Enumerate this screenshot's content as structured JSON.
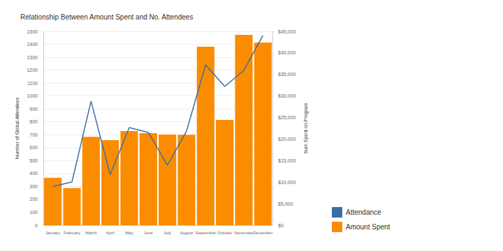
{
  "chart_data": {
    "type": "bar",
    "title": "Relationship Between Amount Spent and No. Attendees",
    "y_label": "Number of Global Attendees",
    "y2_label": "Sum Spent on Program",
    "categories": [
      "January",
      "February",
      "March",
      "April",
      "May",
      "June",
      "July",
      "August",
      "September",
      "October",
      "November",
      "December"
    ],
    "series": [
      {
        "name": "Attendance",
        "type": "line",
        "color": "#3d6fa3",
        "values": [
          300,
          335,
          960,
          390,
          755,
          718,
          464,
          728,
          1241,
          1074,
          1198,
          1468
        ]
      },
      {
        "name": "Amount Spent",
        "type": "bar",
        "axis": "y2",
        "color": "#fb8c00",
        "values": [
          11000,
          8600,
          20500,
          19750,
          21850,
          21370,
          21040,
          21000,
          41440,
          24440,
          44190,
          42400
        ]
      }
    ],
    "ylim": [
      0,
      1500
    ],
    "yticks": [
      0,
      100,
      200,
      300,
      400,
      500,
      600,
      700,
      800,
      900,
      1000,
      1100,
      1200,
      1300,
      1400,
      1500
    ],
    "y2lim": [
      0,
      45000
    ],
    "y2ticks": [
      {
        "value": 0,
        "label": "$0"
      },
      {
        "value": 5000,
        "label": "$5,000"
      },
      {
        "value": 10000,
        "label": "$10,000"
      },
      {
        "value": 15000,
        "label": "$15,000"
      },
      {
        "value": 20000,
        "label": "$20,000"
      },
      {
        "value": 25000,
        "label": "$25,000"
      },
      {
        "value": 30000,
        "label": "$30,000"
      },
      {
        "value": 35000,
        "label": "$35,000"
      },
      {
        "value": 40000,
        "label": "$40,000"
      },
      {
        "value": 45000,
        "label": "$45,000"
      }
    ],
    "grid": true,
    "legend": "bottom-right"
  }
}
